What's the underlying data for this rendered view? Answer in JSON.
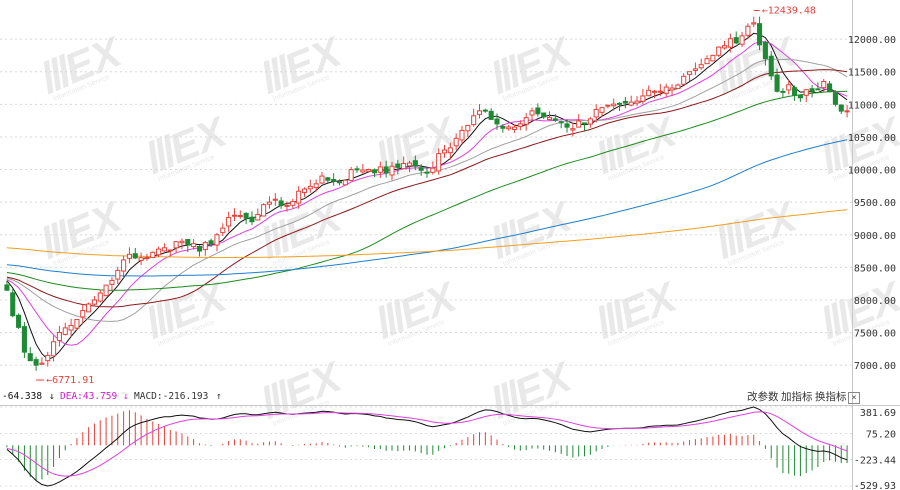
{
  "chart_data": [
    {
      "type": "candlestick",
      "title": "",
      "ylim": [
        6650,
        12600
      ],
      "y_ticks": [
        7000,
        7500,
        8000,
        8500,
        9000,
        9500,
        10000,
        10500,
        11000,
        11500,
        12000
      ],
      "y_tick_labels": [
        "7000.00",
        "7500.00",
        "8000.00",
        "8500.00",
        "9000.00",
        "9500.00",
        "10000.00",
        "10500.00",
        "11000.00",
        "11500.00",
        "12000.00"
      ],
      "annotations": {
        "low_label": "6771.91",
        "low_value": 6771.91,
        "high_label": "12439.48",
        "high_value": 12439.48
      },
      "up_color": "#e8413b",
      "down_color": "#1e8a35",
      "ma_colors": [
        "#111111",
        "#e040e0",
        "#a0a0a0",
        "#8b1a1a",
        "#1e8a1e",
        "#1f7fd0",
        "#f0a020"
      ],
      "anchors": [
        {
          "i": 0,
          "close": 8150
        },
        {
          "i": 3,
          "close": 7200
        },
        {
          "i": 5,
          "close": 7000
        },
        {
          "i": 7,
          "close": 7150
        },
        {
          "i": 9,
          "close": 7500
        },
        {
          "i": 12,
          "close": 7700
        },
        {
          "i": 15,
          "close": 8000
        },
        {
          "i": 18,
          "close": 8300
        },
        {
          "i": 21,
          "close": 8700
        },
        {
          "i": 24,
          "close": 8650
        },
        {
          "i": 27,
          "close": 8800
        },
        {
          "i": 30,
          "close": 8900
        },
        {
          "i": 33,
          "close": 8750
        },
        {
          "i": 36,
          "close": 9000
        },
        {
          "i": 39,
          "close": 9300
        },
        {
          "i": 42,
          "close": 9200
        },
        {
          "i": 45,
          "close": 9500
        },
        {
          "i": 48,
          "close": 9450
        },
        {
          "i": 51,
          "close": 9700
        },
        {
          "i": 54,
          "close": 9900
        },
        {
          "i": 57,
          "close": 9800
        },
        {
          "i": 60,
          "close": 10000
        },
        {
          "i": 63,
          "close": 9950
        },
        {
          "i": 66,
          "close": 10050
        },
        {
          "i": 69,
          "close": 10100
        },
        {
          "i": 72,
          "close": 9950
        },
        {
          "i": 75,
          "close": 10300
        },
        {
          "i": 78,
          "close": 10600
        },
        {
          "i": 81,
          "close": 10900
        },
        {
          "i": 84,
          "close": 10700
        },
        {
          "i": 87,
          "close": 10650
        },
        {
          "i": 90,
          "close": 10900
        },
        {
          "i": 93,
          "close": 10800
        },
        {
          "i": 96,
          "close": 10650
        },
        {
          "i": 99,
          "close": 10700
        },
        {
          "i": 102,
          "close": 10950
        },
        {
          "i": 105,
          "close": 11000
        },
        {
          "i": 108,
          "close": 11050
        },
        {
          "i": 111,
          "close": 11200
        },
        {
          "i": 114,
          "close": 11250
        },
        {
          "i": 117,
          "close": 11500
        },
        {
          "i": 120,
          "close": 11700
        },
        {
          "i": 123,
          "close": 11900
        },
        {
          "i": 126,
          "close": 12050
        },
        {
          "i": 128,
          "close": 12250
        },
        {
          "i": 130,
          "close": 11700
        },
        {
          "i": 132,
          "close": 11200
        },
        {
          "i": 134,
          "close": 11300
        },
        {
          "i": 136,
          "close": 11100
        },
        {
          "i": 138,
          "close": 11200
        },
        {
          "i": 140,
          "close": 11350
        },
        {
          "i": 142,
          "close": 11000
        },
        {
          "i": 144,
          "close": 10900
        }
      ]
    },
    {
      "type": "macd",
      "ylim": [
        -529.93,
        381.69
      ],
      "y_ticks": [
        381.69,
        75.2,
        -223.44,
        -529.93
      ],
      "y_tick_labels": [
        "381.69",
        "75.20",
        "-223.44",
        "-529.93"
      ],
      "dif": -64.338,
      "dea": 43.759,
      "macd": -216.193,
      "dif_color": "#111111",
      "dea_color": "#e040e0",
      "pos_color": "#e8413b",
      "neg_color": "#1e8a35"
    }
  ],
  "indicator_bar": {
    "dif_text": "-64.338",
    "dif_arrow": "↓",
    "dea_text": "DEA:43.759",
    "dea_arrow": "↓",
    "macd_text": "MACD:-216.193",
    "macd_arrow": "↑"
  },
  "buttons": {
    "change_params": "改参数",
    "add_indicator": "加指标",
    "switch_indicator": "换指标",
    "close": "×"
  },
  "watermark": {
    "text": "EX",
    "subtitle": "Information Service"
  }
}
